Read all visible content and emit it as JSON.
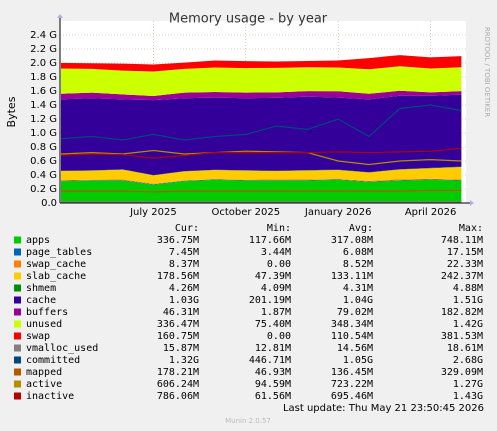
{
  "chart_data": {
    "type": "area",
    "title": "Memory usage - by year",
    "y_label": "Bytes",
    "side_label": "RRDTOOL / TOBI OETIKER",
    "footer": "Last update: Thu May 21 23:50:45 2026",
    "version": "Munin 2.0.57",
    "categories": [
      null,
      null,
      null,
      "July 2025",
      null,
      null,
      "October 2025",
      null,
      null,
      "January 2026",
      null,
      null,
      "April 2026",
      null
    ],
    "ylim": [
      0,
      2.6
    ],
    "yticks": [
      {
        "value": 0,
        "label": "0.0"
      },
      {
        "value": 0.2,
        "label": "0.2 G"
      },
      {
        "value": 0.4,
        "label": "0.4 G"
      },
      {
        "value": 0.6,
        "label": "0.6 G"
      },
      {
        "value": 0.8,
        "label": "0.8 G"
      },
      {
        "value": 1.0,
        "label": "1.0 G"
      },
      {
        "value": 1.2,
        "label": "1.2 G"
      },
      {
        "value": 1.4,
        "label": "1.4 G"
      },
      {
        "value": 1.6,
        "label": "1.6 G"
      },
      {
        "value": 1.8,
        "label": "1.8 G"
      },
      {
        "value": 2.0,
        "label": "2.0 G"
      },
      {
        "value": 2.2,
        "label": "2.2 G"
      },
      {
        "value": 2.4,
        "label": "2.4 G"
      }
    ],
    "grid": true,
    "stats_headers": [
      "Cur:",
      "Min:",
      "Avg:",
      "Max:"
    ],
    "series": [
      {
        "name": "apps",
        "color": "#00cc00",
        "stacked": true,
        "values": [
          0.31,
          0.32,
          0.32,
          0.26,
          0.31,
          0.33,
          0.32,
          0.32,
          0.32,
          0.33,
          0.3,
          0.32,
          0.33,
          0.32
        ],
        "stats": [
          "336.75M",
          "117.66M",
          "317.08M",
          "748.11M"
        ]
      },
      {
        "name": "page_tables",
        "color": "#0066b3",
        "stacked": true,
        "values": [
          0.007,
          0.007,
          0.007,
          0.007,
          0.007,
          0.007,
          0.007,
          0.007,
          0.007,
          0.007,
          0.007,
          0.007,
          0.007,
          0.007
        ],
        "stats": [
          "7.45M",
          "3.44M",
          "6.08M",
          "17.15M"
        ]
      },
      {
        "name": "swap_cache",
        "color": "#ff8000",
        "stacked": true,
        "values": [
          0.01,
          0.005,
          0.01,
          0.008,
          0.005,
          0.004,
          0.006,
          0.01,
          0.008,
          0.005,
          0.009,
          0.012,
          0.01,
          0.008
        ],
        "stats": [
          "8.37M",
          "0.00",
          "8.52M",
          "22.33M"
        ]
      },
      {
        "name": "slab_cache",
        "color": "#ffcc00",
        "stacked": true,
        "values": [
          0.13,
          0.13,
          0.14,
          0.12,
          0.13,
          0.13,
          0.13,
          0.12,
          0.13,
          0.13,
          0.12,
          0.14,
          0.15,
          0.18
        ],
        "stats": [
          "178.56M",
          "47.39M",
          "133.11M",
          "242.37M"
        ]
      },
      {
        "name": "shmem",
        "color": "#008f00",
        "stacked": true,
        "values": [
          0.004,
          0.004,
          0.004,
          0.004,
          0.004,
          0.004,
          0.004,
          0.004,
          0.004,
          0.004,
          0.004,
          0.004,
          0.004,
          0.004
        ],
        "stats": [
          "4.26M",
          "4.09M",
          "4.31M",
          "4.88M"
        ]
      },
      {
        "name": "cache",
        "color": "#330099",
        "stacked": true,
        "values": [
          1.02,
          1.03,
          1.0,
          1.07,
          1.04,
          1.03,
          1.03,
          1.04,
          1.05,
          1.03,
          1.04,
          1.05,
          1.03,
          1.03
        ],
        "stats": [
          "1.03G",
          "201.19M",
          "1.04G",
          "1.51G"
        ]
      },
      {
        "name": "buffers",
        "color": "#990099",
        "stacked": true,
        "values": [
          0.08,
          0.08,
          0.07,
          0.06,
          0.08,
          0.08,
          0.08,
          0.08,
          0.08,
          0.09,
          0.08,
          0.07,
          0.05,
          0.05
        ],
        "stats": [
          "46.31M",
          "1.87M",
          "79.02M",
          "182.82M"
        ]
      },
      {
        "name": "unused",
        "color": "#ccff00",
        "stacked": true,
        "values": [
          0.36,
          0.34,
          0.34,
          0.35,
          0.34,
          0.35,
          0.35,
          0.35,
          0.34,
          0.34,
          0.35,
          0.35,
          0.34,
          0.34
        ],
        "stats": [
          "336.47M",
          "75.40M",
          "348.34M",
          "1.42G"
        ]
      },
      {
        "name": "swap",
        "color": "#ff0000",
        "stacked": true,
        "values": [
          0.08,
          0.08,
          0.1,
          0.1,
          0.09,
          0.1,
          0.1,
          0.09,
          0.09,
          0.1,
          0.16,
          0.16,
          0.16,
          0.16
        ],
        "stats": [
          "160.75M",
          "0.00",
          "110.54M",
          "381.53M"
        ]
      },
      {
        "name": "vmalloc_used",
        "color": "#808080",
        "stacked": false,
        "values": [
          0.016,
          0.016,
          0.016,
          0.016,
          0.016,
          0.016,
          0.016,
          0.016,
          0.016,
          0.016,
          0.016,
          0.016,
          0.016,
          0.016
        ],
        "stats": [
          "15.87M",
          "12.81M",
          "14.56M",
          "18.61M"
        ]
      },
      {
        "name": "committed",
        "color": "#00487d",
        "stacked": false,
        "values": [
          0.92,
          0.95,
          0.9,
          0.98,
          0.9,
          0.95,
          0.98,
          1.1,
          1.05,
          1.2,
          0.95,
          1.35,
          1.4,
          1.32
        ],
        "stats": [
          "1.32G",
          "446.71M",
          "1.05G",
          "2.68G"
        ]
      },
      {
        "name": "mapped",
        "color": "#b35a00",
        "stacked": false,
        "values": [
          0.17,
          0.17,
          0.17,
          0.16,
          0.17,
          0.17,
          0.17,
          0.17,
          0.17,
          0.17,
          0.17,
          0.17,
          0.18,
          0.18
        ],
        "stats": [
          "178.21M",
          "46.93M",
          "136.45M",
          "329.09M"
        ]
      },
      {
        "name": "active",
        "color": "#b38f00",
        "stacked": false,
        "values": [
          0.7,
          0.72,
          0.7,
          0.75,
          0.7,
          0.72,
          0.74,
          0.73,
          0.72,
          0.6,
          0.55,
          0.6,
          0.62,
          0.6
        ],
        "stats": [
          "606.24M",
          "94.59M",
          "723.22M",
          "1.27G"
        ]
      },
      {
        "name": "inactive",
        "color": "#b30000",
        "stacked": false,
        "values": [
          0.68,
          0.7,
          0.69,
          0.64,
          0.68,
          0.72,
          0.72,
          0.72,
          0.72,
          0.73,
          0.72,
          0.73,
          0.74,
          0.78
        ],
        "stats": [
          "786.06M",
          "61.56M",
          "695.46M",
          "1.43G"
        ]
      }
    ]
  }
}
